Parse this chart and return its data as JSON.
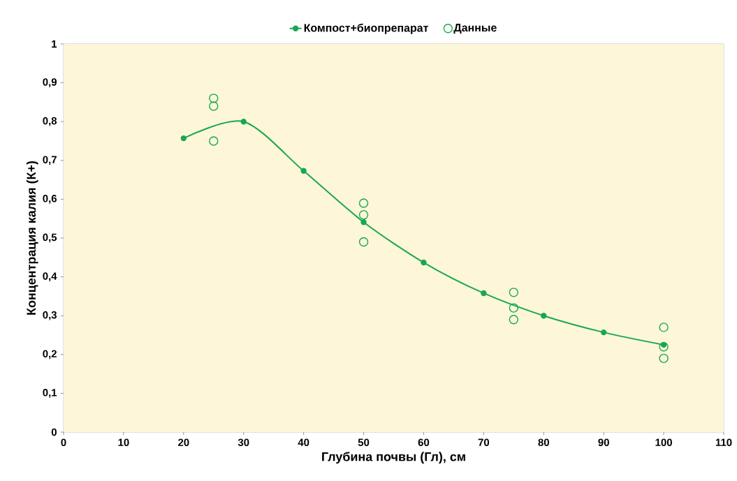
{
  "chart_data": {
    "type": "line",
    "xlabel": "Глубина почвы (Гл), см",
    "ylabel": "Концентрация  калия (К+)",
    "series": [
      {
        "name": "Компост+биопрепарат",
        "marker": "circle",
        "color": "#1aa84f",
        "x": [
          20,
          30,
          40,
          50,
          60,
          70,
          80,
          90,
          100
        ],
        "values": [
          0.757,
          0.8,
          0.673,
          0.541,
          0.437,
          0.358,
          0.3,
          0.257,
          0.225
        ]
      },
      {
        "name": "Данные",
        "type": "scatter",
        "marker": "circle",
        "color": "#1aa84f",
        "x": [
          25,
          25,
          25,
          50,
          50,
          50,
          75,
          75,
          75,
          100,
          100,
          100
        ],
        "values": [
          0.86,
          0.84,
          0.75,
          0.59,
          0.56,
          0.49,
          0.36,
          0.32,
          0.29,
          0.27,
          0.22,
          0.19
        ]
      }
    ],
    "xlim": [
      0,
      110
    ],
    "xticks": [
      0,
      10,
      20,
      30,
      40,
      50,
      60,
      70,
      80,
      90,
      100,
      110
    ],
    "ylim": [
      0,
      1
    ],
    "yticks": [
      0,
      {
        "value": 0.1,
        "label": "0,1"
      },
      {
        "value": 0.2,
        "label": "0,2"
      },
      {
        "value": 0.3,
        "label": "0,3"
      },
      {
        "value": 0.4,
        "label": "0,4"
      },
      {
        "value": 0.5,
        "label": "0,5"
      },
      {
        "value": 0.6,
        "label": "0,6"
      },
      {
        "value": 0.7,
        "label": "0,7"
      },
      {
        "value": 0.8,
        "label": "0,8"
      },
      {
        "value": 0.9,
        "label": "0,9"
      },
      1
    ],
    "legend": "top",
    "grid": false
  }
}
